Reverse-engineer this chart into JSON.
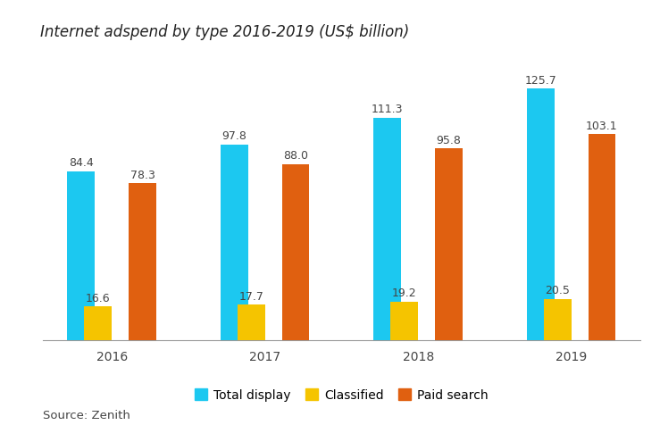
{
  "title": "Internet adspend by type 2016-2019 (US$ billion)",
  "source": "Source: Zenith",
  "years": [
    "2016",
    "2017",
    "2018",
    "2019"
  ],
  "series": {
    "Total display": [
      84.4,
      97.8,
      111.3,
      125.7
    ],
    "Classified": [
      16.6,
      17.7,
      19.2,
      20.5
    ],
    "Paid search": [
      78.3,
      88.0,
      95.8,
      103.1
    ]
  },
  "colors": {
    "Total display": "#1CC8F0",
    "Classified": "#F5C400",
    "Paid search": "#E06010"
  },
  "legend_labels": [
    "Total display",
    "Classified",
    "Paid search"
  ],
  "bar_width": 0.18,
  "bar_spacing": 0.02,
  "ylim": [
    0,
    145
  ],
  "label_fontsize": 9,
  "title_fontsize": 12,
  "tick_fontsize": 10,
  "legend_fontsize": 10,
  "source_fontsize": 9.5,
  "background_color": "#FFFFFF"
}
